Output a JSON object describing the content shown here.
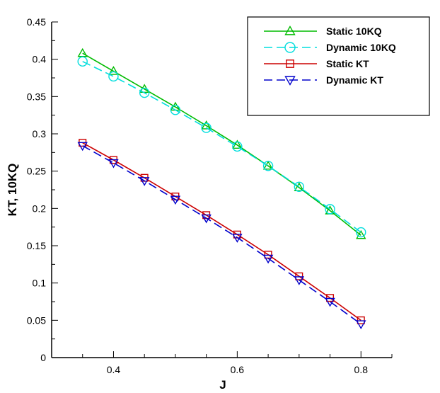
{
  "chart_data": {
    "type": "line",
    "title": "",
    "xlabel": "J",
    "ylabel": "KT, 10KQ",
    "xlim": [
      0.3,
      0.85
    ],
    "ylim": [
      0,
      0.45
    ],
    "xticks": [
      0.4,
      0.6,
      0.8
    ],
    "xtick_labels": [
      "0.4",
      "0.6",
      "0.8"
    ],
    "yticks": [
      0,
      0.05,
      0.1,
      0.15,
      0.2,
      0.25,
      0.3,
      0.35,
      0.4,
      0.45
    ],
    "ytick_labels": [
      "0",
      "0.05",
      "0.1",
      "0.15",
      "0.2",
      "0.25",
      "0.3",
      "0.35",
      "0.4",
      "0.45"
    ],
    "grid": false,
    "legend_position": "top-right",
    "x": [
      0.35,
      0.4,
      0.45,
      0.5,
      0.55,
      0.6,
      0.65,
      0.7,
      0.75,
      0.8
    ],
    "series": [
      {
        "name": "Static 10KQ",
        "color": "#00bb00",
        "dash": "solid",
        "marker": "triangle-up",
        "values": [
          0.408,
          0.384,
          0.36,
          0.336,
          0.311,
          0.285,
          0.257,
          0.228,
          0.197,
          0.164
        ]
      },
      {
        "name": "Dynamic 10KQ",
        "color": "#00dddd",
        "dash": "dashed",
        "marker": "circle",
        "values": [
          0.397,
          0.377,
          0.355,
          0.332,
          0.308,
          0.283,
          0.257,
          0.229,
          0.199,
          0.168
        ]
      },
      {
        "name": "Static KT",
        "color": "#cc0000",
        "dash": "solid",
        "marker": "square",
        "values": [
          0.288,
          0.265,
          0.241,
          0.216,
          0.191,
          0.165,
          0.138,
          0.109,
          0.08,
          0.05
        ]
      },
      {
        "name": "Dynamic KT",
        "color": "#0000cc",
        "dash": "dashed",
        "marker": "triangle-down",
        "values": [
          0.284,
          0.261,
          0.237,
          0.212,
          0.187,
          0.161,
          0.133,
          0.104,
          0.075,
          0.045
        ]
      }
    ]
  }
}
